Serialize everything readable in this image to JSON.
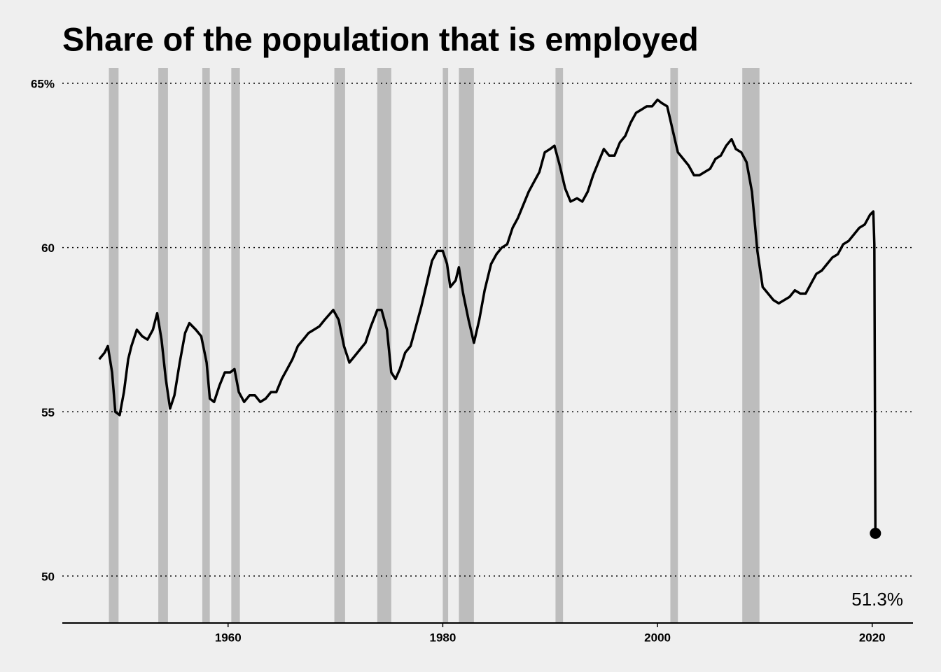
{
  "chart_data": {
    "type": "line",
    "title": "Share of the population that is employed",
    "x": [
      1948.0,
      1948.5,
      1948.8,
      1949.2,
      1949.5,
      1949.9,
      1950.3,
      1950.7,
      1951.0,
      1951.5,
      1952.0,
      1952.5,
      1953.0,
      1953.4,
      1953.8,
      1954.2,
      1954.6,
      1955.0,
      1955.5,
      1956.0,
      1956.4,
      1957.0,
      1957.5,
      1958.0,
      1958.3,
      1958.7,
      1959.2,
      1959.7,
      1960.2,
      1960.6,
      1961.0,
      1961.5,
      1962.0,
      1962.5,
      1963.0,
      1963.5,
      1964.0,
      1964.5,
      1965.0,
      1965.5,
      1966.0,
      1966.5,
      1967.0,
      1967.5,
      1968.0,
      1968.5,
      1969.0,
      1969.8,
      1970.3,
      1970.8,
      1971.3,
      1971.8,
      1972.3,
      1972.8,
      1973.3,
      1973.9,
      1974.3,
      1974.8,
      1975.2,
      1975.6,
      1976.0,
      1976.5,
      1977.0,
      1977.5,
      1978.0,
      1978.5,
      1979.0,
      1979.5,
      1980.0,
      1980.4,
      1980.7,
      1981.2,
      1981.5,
      1981.9,
      1982.4,
      1982.9,
      1983.4,
      1983.9,
      1984.5,
      1985.0,
      1985.5,
      1986.0,
      1986.5,
      1987.0,
      1987.5,
      1988.0,
      1988.5,
      1989.0,
      1989.5,
      1990.0,
      1990.4,
      1990.9,
      1991.4,
      1991.9,
      1992.5,
      1993.0,
      1993.5,
      1994.0,
      1994.5,
      1995.0,
      1995.5,
      1996.0,
      1996.5,
      1997.0,
      1997.5,
      1998.0,
      1998.5,
      1999.0,
      1999.5,
      2000.0,
      2000.4,
      2000.9,
      2001.4,
      2001.9,
      2002.4,
      2002.9,
      2003.4,
      2003.9,
      2004.4,
      2004.9,
      2005.4,
      2005.9,
      2006.4,
      2006.9,
      2007.3,
      2007.8,
      2008.3,
      2008.8,
      2009.3,
      2009.8,
      2010.3,
      2010.8,
      2011.3,
      2011.8,
      2012.3,
      2012.8,
      2013.3,
      2013.8,
      2014.3,
      2014.8,
      2015.3,
      2015.8,
      2016.3,
      2016.8,
      2017.3,
      2017.8,
      2018.3,
      2018.8,
      2019.3,
      2019.8,
      2020.1,
      2020.2,
      2020.3
    ],
    "values": [
      56.6,
      56.8,
      57.0,
      56.2,
      55.0,
      54.9,
      55.6,
      56.6,
      57.0,
      57.5,
      57.3,
      57.2,
      57.5,
      58.0,
      57.2,
      56.0,
      55.1,
      55.5,
      56.5,
      57.4,
      57.7,
      57.5,
      57.3,
      56.5,
      55.4,
      55.3,
      55.8,
      56.2,
      56.2,
      56.3,
      55.6,
      55.3,
      55.5,
      55.5,
      55.3,
      55.4,
      55.6,
      55.6,
      56.0,
      56.3,
      56.6,
      57.0,
      57.2,
      57.4,
      57.5,
      57.6,
      57.8,
      58.1,
      57.8,
      57.0,
      56.5,
      56.7,
      56.9,
      57.1,
      57.6,
      58.1,
      58.1,
      57.5,
      56.2,
      56.0,
      56.3,
      56.8,
      57.0,
      57.6,
      58.2,
      58.9,
      59.6,
      59.9,
      59.9,
      59.5,
      58.8,
      59.0,
      59.4,
      58.6,
      57.8,
      57.1,
      57.8,
      58.7,
      59.5,
      59.8,
      60.0,
      60.1,
      60.6,
      60.9,
      61.3,
      61.7,
      62.0,
      62.3,
      62.9,
      63.0,
      63.1,
      62.5,
      61.8,
      61.4,
      61.5,
      61.4,
      61.7,
      62.2,
      62.6,
      63.0,
      62.8,
      62.8,
      63.2,
      63.4,
      63.8,
      64.1,
      64.2,
      64.3,
      64.3,
      64.5,
      64.4,
      64.3,
      63.6,
      62.9,
      62.7,
      62.5,
      62.2,
      62.2,
      62.3,
      62.4,
      62.7,
      62.8,
      63.1,
      63.3,
      63.0,
      62.9,
      62.6,
      61.7,
      59.9,
      58.8,
      58.6,
      58.4,
      58.3,
      58.4,
      58.5,
      58.7,
      58.6,
      58.6,
      58.9,
      59.2,
      59.3,
      59.5,
      59.7,
      59.8,
      60.1,
      60.2,
      60.4,
      60.6,
      60.7,
      61.0,
      61.1,
      60.1,
      51.3
    ],
    "color": "#000000",
    "recessions": [
      [
        1948.9,
        1949.8
      ],
      [
        1953.5,
        1954.4
      ],
      [
        1957.6,
        1958.3
      ],
      [
        1960.3,
        1961.1
      ],
      [
        1969.9,
        1970.9
      ],
      [
        1973.9,
        1975.2
      ],
      [
        1980.0,
        1980.5
      ],
      [
        1981.5,
        1982.9
      ],
      [
        1990.5,
        1991.2
      ],
      [
        2001.2,
        2001.9
      ],
      [
        2007.9,
        2009.5
      ]
    ],
    "recession_color": "#bdbdbd",
    "annotation": {
      "x": 2020.3,
      "y": 51.3,
      "label": "51.3%"
    },
    "xlim": [
      1944.56,
      2023.8
    ],
    "ylim": [
      48.57,
      65.47
    ],
    "xticks": [
      1960,
      1980,
      2000,
      2020
    ],
    "yticks": [
      50,
      55,
      60,
      {
        "value": 65,
        "label": "65%"
      }
    ],
    "grid": true
  }
}
